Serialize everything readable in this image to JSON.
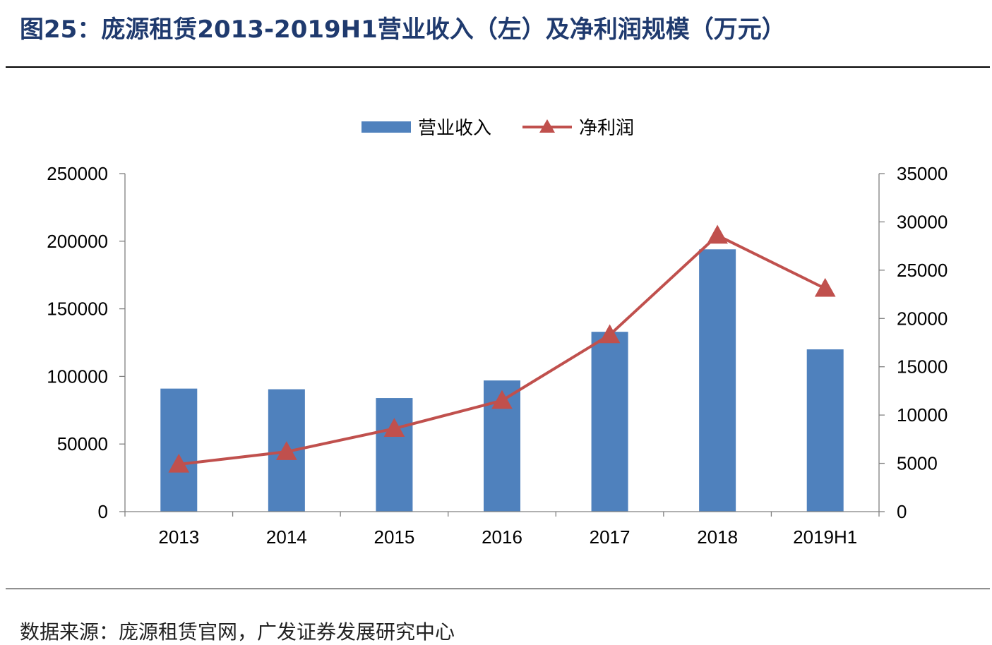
{
  "figure": {
    "title": "图25：庞源租赁2013-2019H1营业收入（左）及净利润规模（万元）",
    "source": "数据来源：庞源租赁官网，广发证券发展研究中心"
  },
  "colors": {
    "bar": "#4f81bd",
    "line": "#c0504d",
    "title": "#1f3a6e"
  },
  "chart_data": {
    "type": "bar",
    "categories": [
      "2013",
      "2014",
      "2015",
      "2016",
      "2017",
      "2018",
      "2019H1"
    ],
    "series": [
      {
        "name": "营业收入",
        "type": "bar",
        "axis": "left",
        "values": [
          91000,
          90500,
          84000,
          97000,
          133000,
          194000,
          120000
        ]
      },
      {
        "name": "净利润",
        "type": "line",
        "marker": "triangle",
        "axis": "right",
        "values": [
          4900,
          6200,
          8600,
          11500,
          18300,
          28600,
          23100
        ]
      }
    ],
    "y_left": {
      "min": 0,
      "max": 250000,
      "ticks": [
        "0",
        "50000",
        "100000",
        "150000",
        "200000",
        "250000"
      ]
    },
    "y_right": {
      "min": 0,
      "max": 35000,
      "ticks": [
        "0",
        "5000",
        "10000",
        "15000",
        "20000",
        "25000",
        "30000",
        "35000"
      ]
    },
    "legend": {
      "position": "top-center",
      "items": [
        "营业收入",
        "净利润"
      ]
    },
    "grid": false
  }
}
